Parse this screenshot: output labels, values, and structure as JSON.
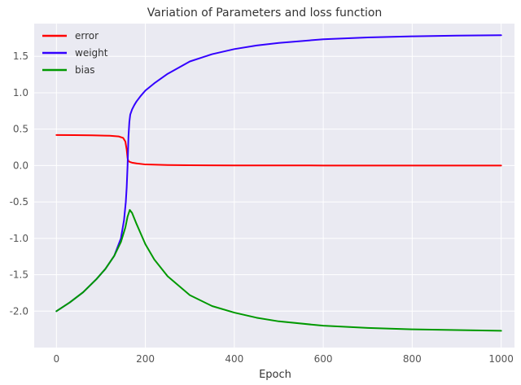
{
  "chart_data": {
    "type": "line",
    "title": "Variation of Parameters and loss function",
    "xlabel": "Epoch",
    "ylabel": "",
    "xlim": [
      -50,
      1030
    ],
    "ylim": [
      -2.5,
      1.95
    ],
    "xticks": [
      0,
      200,
      400,
      600,
      800,
      1000
    ],
    "yticks": [
      -2.0,
      -1.5,
      -1.0,
      -0.5,
      0.0,
      0.5,
      1.0,
      1.5
    ],
    "grid": true,
    "legend_position": "top-left",
    "series": [
      {
        "name": "error",
        "color": "#ff0000",
        "x": [
          0,
          40,
          80,
          120,
          140,
          150,
          155,
          158,
          160,
          162,
          165,
          170,
          180,
          200,
          250,
          300,
          400,
          600,
          800,
          1000
        ],
        "y": [
          0.42,
          0.418,
          0.415,
          0.41,
          0.4,
          0.38,
          0.33,
          0.22,
          0.1,
          0.06,
          0.05,
          0.04,
          0.03,
          0.015,
          0.007,
          0.004,
          0.002,
          0.001,
          0.0005,
          0.0
        ]
      },
      {
        "name": "weight",
        "color": "#3300ff",
        "x": [
          0,
          30,
          60,
          90,
          110,
          130,
          145,
          152,
          156,
          158,
          160,
          162,
          164,
          166,
          170,
          175,
          180,
          190,
          200,
          220,
          250,
          300,
          350,
          400,
          450,
          500,
          600,
          700,
          800,
          900,
          1000
        ],
        "y": [
          -2.0,
          -1.88,
          -1.74,
          -1.56,
          -1.42,
          -1.24,
          -1.0,
          -0.75,
          -0.5,
          -0.3,
          0.0,
          0.4,
          0.6,
          0.7,
          0.77,
          0.83,
          0.88,
          0.96,
          1.03,
          1.13,
          1.26,
          1.43,
          1.53,
          1.6,
          1.65,
          1.685,
          1.735,
          1.76,
          1.775,
          1.785,
          1.79
        ]
      },
      {
        "name": "bias",
        "color": "#009900",
        "x": [
          0,
          30,
          60,
          90,
          110,
          130,
          145,
          155,
          160,
          165,
          170,
          180,
          190,
          200,
          220,
          250,
          300,
          350,
          400,
          450,
          500,
          600,
          700,
          800,
          900,
          1000
        ],
        "y": [
          -2.0,
          -1.88,
          -1.74,
          -1.56,
          -1.42,
          -1.24,
          -1.05,
          -0.85,
          -0.7,
          -0.61,
          -0.65,
          -0.8,
          -0.94,
          -1.08,
          -1.29,
          -1.52,
          -1.78,
          -1.93,
          -2.02,
          -2.09,
          -2.14,
          -2.2,
          -2.23,
          -2.25,
          -2.26,
          -2.27
        ]
      }
    ]
  }
}
